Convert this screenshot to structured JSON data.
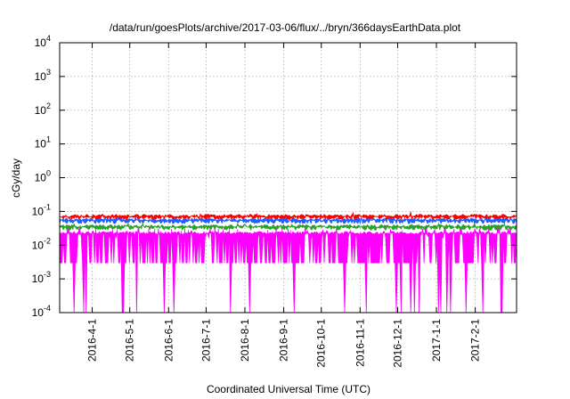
{
  "chart_data": {
    "type": "area",
    "title": "/data/run/goesPlots/archive/2017-03-06/flux/../bryn/366daysEarthData.plot",
    "xlabel": "Coordinated Universal Time (UTC)",
    "ylabel": "cGy/day",
    "y_scale": "log",
    "ylim": [
      0.0001,
      10000
    ],
    "y_ticks": [
      {
        "value": 0.0001,
        "mantissa": "10",
        "exponent": "-4"
      },
      {
        "value": 0.001,
        "mantissa": "10",
        "exponent": "-3"
      },
      {
        "value": 0.01,
        "mantissa": "10",
        "exponent": "-2"
      },
      {
        "value": 0.1,
        "mantissa": "10",
        "exponent": "-1"
      },
      {
        "value": 1,
        "mantissa": "10",
        "exponent": "0"
      },
      {
        "value": 10,
        "mantissa": "10",
        "exponent": "1"
      },
      {
        "value": 100,
        "mantissa": "10",
        "exponent": "2"
      },
      {
        "value": 1000,
        "mantissa": "10",
        "exponent": "3"
      },
      {
        "value": 10000,
        "mantissa": "10",
        "exponent": "4"
      }
    ],
    "xlim": [
      "2016-03-06",
      "2017-03-06"
    ],
    "x_ticks": [
      "2016-4-1",
      "2016-5-1",
      "2016-6-1",
      "2016-7-1",
      "2016-8-1",
      "2016-9-1",
      "2016-10-1",
      "2016-11-1",
      "2016-12-1",
      "2017-1-1",
      "2017-2-1"
    ],
    "x_tick_dates": [
      "2016-04-01",
      "2016-05-01",
      "2016-06-01",
      "2016-07-01",
      "2016-08-01",
      "2016-09-01",
      "2016-10-01",
      "2016-11-01",
      "2016-12-01",
      "2017-01-01",
      "2017-02-01"
    ],
    "grid": true,
    "series": [
      {
        "color": "#ff0000",
        "typical": 0.065,
        "min": 0.05,
        "max": 0.1
      },
      {
        "color": "#1f5fff",
        "typical": 0.05,
        "min": 0.035,
        "max": 0.07
      },
      {
        "color": "#2ca02c",
        "typical": 0.032,
        "min": 0.025,
        "max": 0.045
      },
      {
        "color": "#ff00ff",
        "typical": 0.02,
        "min": 0.0001,
        "max": 0.03
      }
    ]
  }
}
